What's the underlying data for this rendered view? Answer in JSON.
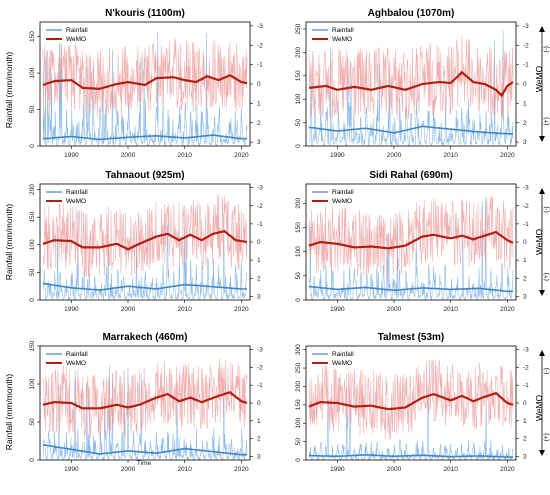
{
  "figure": {
    "ylabel_left": "Rainfall (mm/month)",
    "ylabel_right": "WeMO",
    "wemo_pos_sign": "(+)",
    "wemo_neg_sign": "(-)",
    "xlabel": "Time"
  },
  "colors": {
    "rain_raw": "#7fb4e6",
    "rain_smooth": "#3d86c6",
    "wemo_raw": "#f0a0a0",
    "wemo_smooth": "#b01f10",
    "frame": "#000000"
  },
  "chart_data": [
    {
      "type": "line",
      "title": "N'kouris (1100m)",
      "x_range": [
        1985,
        2021
      ],
      "x_ticks": [
        1990,
        2000,
        2010,
        2020
      ],
      "ylim": [
        0,
        170
      ],
      "y_ticks": [
        0,
        50,
        100,
        150
      ],
      "wemo_lim": [
        3.2,
        -3.2
      ],
      "wemo_ticks": [
        3,
        2,
        1,
        0,
        -1,
        -2,
        -3
      ],
      "wemo_labels": [
        "3",
        "2",
        "1",
        "0",
        "-1",
        "-2",
        "-3"
      ],
      "legend_position": "top-left",
      "series": [
        {
          "name": "Rainfall",
          "axis": "left",
          "mean": 32,
          "peak": 160,
          "smooth": [
            [
              1985,
              10
            ],
            [
              1990,
              13
            ],
            [
              1995,
              9
            ],
            [
              2000,
              12
            ],
            [
              2005,
              14
            ],
            [
              2010,
              11
            ],
            [
              2015,
              15
            ],
            [
              2020,
              10
            ]
          ]
        },
        {
          "name": "WeMO",
          "axis": "right",
          "amplitude": 1.9,
          "smooth": [
            [
              1985,
              0.05
            ],
            [
              1987,
              -0.15
            ],
            [
              1990,
              -0.2
            ],
            [
              1992,
              0.2
            ],
            [
              1995,
              0.25
            ],
            [
              1998,
              0.0
            ],
            [
              2000,
              -0.1
            ],
            [
              2003,
              0.05
            ],
            [
              2005,
              -0.3
            ],
            [
              2008,
              -0.35
            ],
            [
              2010,
              -0.2
            ],
            [
              2012,
              -0.1
            ],
            [
              2014,
              -0.4
            ],
            [
              2016,
              -0.2
            ],
            [
              2018,
              -0.45
            ],
            [
              2020,
              -0.1
            ],
            [
              2021,
              -0.05
            ]
          ]
        }
      ]
    },
    {
      "type": "line",
      "title": "Aghbalou (1070m)",
      "x_range": [
        1985,
        2021
      ],
      "x_ticks": [
        1990,
        2000,
        2010,
        2020
      ],
      "ylim": [
        0,
        265
      ],
      "y_ticks": [
        0,
        50,
        100,
        150,
        200,
        250
      ],
      "wemo_lim": [
        3.2,
        -3.2
      ],
      "wemo_ticks": [
        3,
        2,
        1,
        0,
        -1,
        -2,
        -3
      ],
      "wemo_labels": [
        "3",
        "2",
        "1",
        "0",
        "-1",
        "-2",
        "-3"
      ],
      "legend_position": "top-left",
      "series": [
        {
          "name": "Rainfall",
          "axis": "left",
          "mean": 55,
          "peak": 250,
          "smooth": [
            [
              1985,
              40
            ],
            [
              1990,
              32
            ],
            [
              1995,
              38
            ],
            [
              2000,
              28
            ],
            [
              2005,
              42
            ],
            [
              2010,
              36
            ],
            [
              2015,
              30
            ],
            [
              2020,
              26
            ]
          ]
        },
        {
          "name": "WeMO",
          "axis": "right",
          "amplitude": 1.9,
          "smooth": [
            [
              1985,
              0.2
            ],
            [
              1988,
              0.1
            ],
            [
              1990,
              0.3
            ],
            [
              1993,
              0.15
            ],
            [
              1996,
              0.3
            ],
            [
              1999,
              0.1
            ],
            [
              2002,
              0.3
            ],
            [
              2005,
              0.0
            ],
            [
              2008,
              -0.1
            ],
            [
              2010,
              -0.05
            ],
            [
              2012,
              -0.6
            ],
            [
              2014,
              -0.1
            ],
            [
              2016,
              0.0
            ],
            [
              2018,
              0.3
            ],
            [
              2019,
              0.6
            ],
            [
              2020,
              0.1
            ],
            [
              2021,
              -0.1
            ]
          ]
        }
      ]
    },
    {
      "type": "line",
      "title": "Tahnaout (925m)",
      "x_range": [
        1985,
        2021
      ],
      "x_ticks": [
        1990,
        2000,
        2010,
        2020
      ],
      "ylim": [
        0,
        210
      ],
      "y_ticks": [
        0,
        50,
        100,
        150,
        200
      ],
      "wemo_lim": [
        3.2,
        -3.2
      ],
      "wemo_ticks": [
        3,
        2,
        1,
        0,
        -1,
        -2,
        -3
      ],
      "wemo_labels": [
        "3",
        "2",
        "1",
        "0",
        "-1",
        "-2",
        "-3"
      ],
      "legend_position": "top-left",
      "series": [
        {
          "name": "Rainfall",
          "axis": "left",
          "mean": 38,
          "peak": 190,
          "smooth": [
            [
              1985,
              30
            ],
            [
              1990,
              22
            ],
            [
              1995,
              18
            ],
            [
              2000,
              25
            ],
            [
              2005,
              20
            ],
            [
              2010,
              28
            ],
            [
              2015,
              24
            ],
            [
              2020,
              20
            ]
          ]
        },
        {
          "name": "WeMO",
          "axis": "right",
          "amplitude": 1.9,
          "smooth": [
            [
              1985,
              0.1
            ],
            [
              1987,
              -0.1
            ],
            [
              1990,
              -0.05
            ],
            [
              1992,
              0.3
            ],
            [
              1995,
              0.3
            ],
            [
              1998,
              0.1
            ],
            [
              2000,
              0.4
            ],
            [
              2002,
              0.1
            ],
            [
              2005,
              -0.3
            ],
            [
              2007,
              -0.45
            ],
            [
              2009,
              -0.1
            ],
            [
              2011,
              -0.4
            ],
            [
              2013,
              -0.1
            ],
            [
              2015,
              -0.45
            ],
            [
              2017,
              -0.6
            ],
            [
              2019,
              -0.1
            ],
            [
              2021,
              0.0
            ]
          ]
        }
      ]
    },
    {
      "type": "line",
      "title": "Sidi Rahal (690m)",
      "x_range": [
        1985,
        2021
      ],
      "x_ticks": [
        1990,
        2000,
        2010,
        2020
      ],
      "ylim": [
        0,
        240
      ],
      "y_ticks": [
        0,
        50,
        100,
        150,
        200
      ],
      "wemo_lim": [
        3.2,
        -3.2
      ],
      "wemo_ticks": [
        3,
        2,
        1,
        0,
        -1,
        -2,
        -3
      ],
      "wemo_labels": [
        "3",
        "2",
        "1",
        "0",
        "-1",
        "-2",
        "-3"
      ],
      "legend_position": "top-left",
      "series": [
        {
          "name": "Rainfall",
          "axis": "left",
          "mean": 40,
          "peak": 215,
          "smooth": [
            [
              1985,
              28
            ],
            [
              1990,
              22
            ],
            [
              1995,
              26
            ],
            [
              2000,
              20
            ],
            [
              2005,
              25
            ],
            [
              2010,
              22
            ],
            [
              2015,
              24
            ],
            [
              2020,
              18
            ]
          ]
        },
        {
          "name": "WeMO",
          "axis": "right",
          "amplitude": 1.9,
          "smooth": [
            [
              1985,
              0.2
            ],
            [
              1987,
              0.0
            ],
            [
              1990,
              0.1
            ],
            [
              1993,
              0.3
            ],
            [
              1996,
              0.25
            ],
            [
              1999,
              0.35
            ],
            [
              2002,
              0.2
            ],
            [
              2005,
              -0.3
            ],
            [
              2007,
              -0.4
            ],
            [
              2010,
              -0.2
            ],
            [
              2012,
              -0.35
            ],
            [
              2014,
              -0.15
            ],
            [
              2016,
              -0.35
            ],
            [
              2018,
              -0.55
            ],
            [
              2020,
              -0.1
            ],
            [
              2021,
              0.05
            ]
          ]
        }
      ]
    },
    {
      "type": "line",
      "title": "Marrakech (460m)",
      "x_range": [
        1985,
        2021
      ],
      "x_ticks": [
        1990,
        2000,
        2010,
        2020
      ],
      "ylim": [
        0,
        150
      ],
      "y_ticks": [
        0,
        50,
        100,
        150
      ],
      "wemo_lim": [
        3.2,
        -3.2
      ],
      "wemo_ticks": [
        3,
        2,
        1,
        0,
        -1,
        -2,
        -3
      ],
      "wemo_labels": [
        "3",
        "2",
        "1",
        "0",
        "-1",
        "-2",
        "-3"
      ],
      "legend_position": "top-left",
      "series": [
        {
          "name": "Rainfall",
          "axis": "left",
          "mean": 22,
          "peak": 135,
          "smooth": [
            [
              1985,
              20
            ],
            [
              1990,
              14
            ],
            [
              1995,
              8
            ],
            [
              2000,
              12
            ],
            [
              2005,
              9
            ],
            [
              2010,
              15
            ],
            [
              2015,
              11
            ],
            [
              2020,
              7
            ]
          ]
        },
        {
          "name": "WeMO",
          "axis": "right",
          "amplitude": 1.9,
          "smooth": [
            [
              1985,
              0.1
            ],
            [
              1987,
              -0.05
            ],
            [
              1990,
              0.0
            ],
            [
              1992,
              0.3
            ],
            [
              1995,
              0.3
            ],
            [
              1998,
              0.1
            ],
            [
              2000,
              0.25
            ],
            [
              2002,
              0.1
            ],
            [
              2005,
              -0.3
            ],
            [
              2007,
              -0.5
            ],
            [
              2009,
              -0.1
            ],
            [
              2011,
              -0.3
            ],
            [
              2013,
              -0.05
            ],
            [
              2016,
              -0.4
            ],
            [
              2018,
              -0.6
            ],
            [
              2020,
              -0.1
            ],
            [
              2021,
              0.0
            ]
          ]
        }
      ]
    },
    {
      "type": "line",
      "title": "Talmest (53m)",
      "x_range": [
        1985,
        2021
      ],
      "x_ticks": [
        1990,
        2000,
        2010,
        2020
      ],
      "ylim": [
        0,
        310
      ],
      "y_ticks": [
        0,
        50,
        100,
        150,
        200,
        250,
        300
      ],
      "wemo_lim": [
        3.2,
        -3.2
      ],
      "wemo_ticks": [
        3,
        2,
        1,
        0,
        -1,
        -2,
        -3
      ],
      "wemo_labels": [
        "3",
        "2",
        "1",
        "0",
        "-1",
        "-2",
        "-3"
      ],
      "legend_position": "top-left",
      "series": [
        {
          "name": "Rainfall",
          "axis": "left",
          "mean": 30,
          "peak": 260,
          "smooth": [
            [
              1985,
              12
            ],
            [
              1990,
              10
            ],
            [
              1995,
              14
            ],
            [
              2000,
              10
            ],
            [
              2005,
              13
            ],
            [
              2010,
              9
            ],
            [
              2015,
              11
            ],
            [
              2020,
              8
            ]
          ]
        },
        {
          "name": "WeMO",
          "axis": "right",
          "amplitude": 1.9,
          "smooth": [
            [
              1985,
              0.2
            ],
            [
              1987,
              -0.05
            ],
            [
              1990,
              0.0
            ],
            [
              1993,
              0.2
            ],
            [
              1996,
              0.15
            ],
            [
              1999,
              0.35
            ],
            [
              2002,
              0.25
            ],
            [
              2005,
              -0.3
            ],
            [
              2007,
              -0.5
            ],
            [
              2010,
              -0.15
            ],
            [
              2012,
              -0.4
            ],
            [
              2014,
              -0.1
            ],
            [
              2016,
              -0.35
            ],
            [
              2018,
              -0.55
            ],
            [
              2020,
              0.0
            ],
            [
              2021,
              0.1
            ]
          ]
        }
      ]
    }
  ]
}
